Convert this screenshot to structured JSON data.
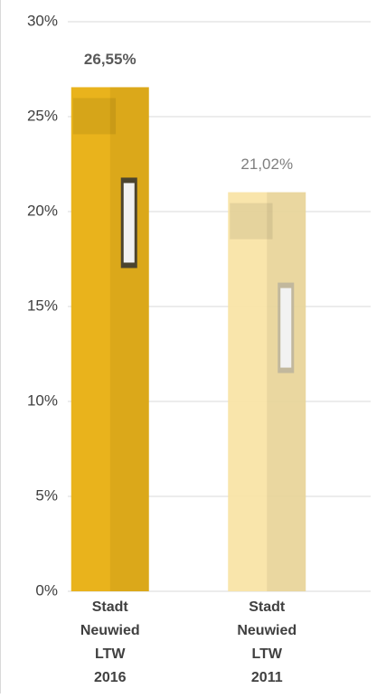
{
  "chart_data": {
    "type": "bar",
    "categories": [
      "Stadt Neuwied LTW 2016",
      "Stadt Neuwied LTW 2011"
    ],
    "values": [
      26.55,
      21.02
    ],
    "value_labels": [
      "26,55%",
      "21,02%"
    ],
    "colors": [
      "#e9b31c",
      "#f8e2a2"
    ],
    "ylim": [
      0,
      30
    ],
    "yticks": [
      {
        "value": 0,
        "label": "0%"
      },
      {
        "value": 5,
        "label": "5%"
      },
      {
        "value": 10,
        "label": "10%"
      },
      {
        "value": 15,
        "label": "15%"
      },
      {
        "value": 20,
        "label": "20%"
      },
      {
        "value": 25,
        "label": "25%"
      },
      {
        "value": 30,
        "label": "30%"
      }
    ],
    "grid": true
  }
}
